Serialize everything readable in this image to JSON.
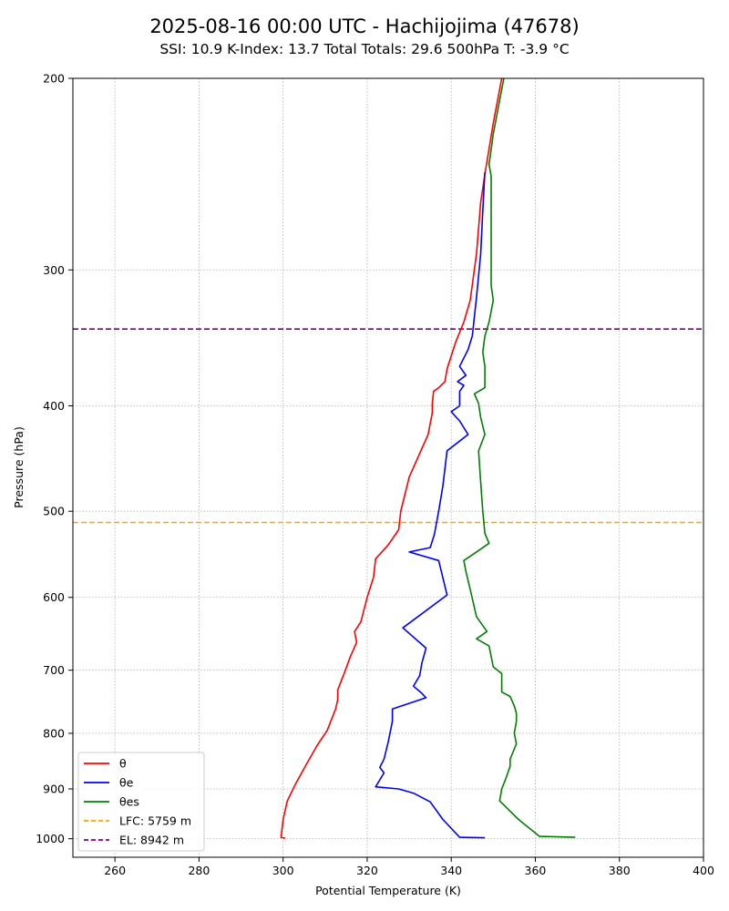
{
  "chart_data": {
    "type": "line",
    "title": "2025-08-16 00:00 UTC - Hachijojima (47678)",
    "subtitle": "SSI: 10.9   K-Index: 13.7   Total Totals: 29.6   500hPa T: -3.9 °C",
    "xlabel": "Potential Temperature (K)",
    "ylabel": "Pressure (hPa)",
    "xlim": [
      250,
      400
    ],
    "ylim": [
      1040,
      200
    ],
    "yscale": "log",
    "xticks": [
      260,
      280,
      300,
      320,
      340,
      360,
      380,
      400
    ],
    "yticks": [
      200,
      300,
      400,
      500,
      600,
      700,
      800,
      900,
      1000
    ],
    "grid": true,
    "legend_position": "lower-left",
    "series": [
      {
        "name": "θ",
        "color": "#ff0000",
        "points": [
          [
            300.5,
            999
          ],
          [
            299.5,
            997
          ],
          [
            300,
            960
          ],
          [
            301,
            923
          ],
          [
            303,
            890
          ],
          [
            305.5,
            855
          ],
          [
            308,
            822
          ],
          [
            310.5,
            795
          ],
          [
            312.5,
            760
          ],
          [
            313,
            745
          ],
          [
            313,
            730
          ],
          [
            314.5,
            705
          ],
          [
            316,
            680
          ],
          [
            317.5,
            660
          ],
          [
            317,
            645
          ],
          [
            318.5,
            632
          ],
          [
            320,
            600
          ],
          [
            321.5,
            575
          ],
          [
            322,
            553
          ],
          [
            325,
            537
          ],
          [
            327.5,
            520
          ],
          [
            328,
            500
          ],
          [
            330,
            465
          ],
          [
            333,
            438
          ],
          [
            334.5,
            425
          ],
          [
            335.5,
            406
          ],
          [
            335.5,
            398
          ],
          [
            335.8,
            388
          ],
          [
            337,
            385
          ],
          [
            338.5,
            380
          ],
          [
            339,
            370
          ],
          [
            340,
            360
          ],
          [
            341,
            350
          ],
          [
            343,
            335
          ],
          [
            344.5,
            320
          ],
          [
            346,
            290
          ],
          [
            347,
            260
          ],
          [
            348,
            245
          ],
          [
            350,
            220
          ],
          [
            352,
            200
          ]
        ]
      },
      {
        "name": "θe",
        "color": "#0000ff",
        "points": [
          [
            348,
            998
          ],
          [
            342,
            997
          ],
          [
            338,
            960
          ],
          [
            335,
            925
          ],
          [
            331,
            908
          ],
          [
            327.5,
            900
          ],
          [
            322,
            896
          ],
          [
            324,
            870
          ],
          [
            323,
            860
          ],
          [
            324,
            845
          ],
          [
            325,
            815
          ],
          [
            326,
            780
          ],
          [
            326,
            760
          ],
          [
            334,
            742
          ],
          [
            333,
            735
          ],
          [
            331,
            724
          ],
          [
            332.5,
            708
          ],
          [
            333,
            690
          ],
          [
            334,
            668
          ],
          [
            328.5,
            640
          ],
          [
            339,
            597
          ],
          [
            337,
            555
          ],
          [
            330,
            545
          ],
          [
            335,
            540
          ],
          [
            336,
            525
          ],
          [
            337,
            500
          ],
          [
            338,
            474
          ],
          [
            339,
            440
          ],
          [
            344,
            425
          ],
          [
            342,
            413
          ],
          [
            340,
            405
          ],
          [
            342,
            400
          ],
          [
            342,
            388
          ],
          [
            343,
            383
          ],
          [
            341.5,
            380
          ],
          [
            343.5,
            375
          ],
          [
            342,
            368
          ],
          [
            344,
            355
          ],
          [
            345,
            345
          ],
          [
            346,
            318
          ],
          [
            347,
            290
          ],
          [
            347.5,
            265
          ],
          [
            348,
            244
          ]
        ]
      },
      {
        "name": "θes",
        "color": "#008000",
        "points": [
          [
            369.5,
            997
          ],
          [
            361,
            995
          ],
          [
            356,
            960
          ],
          [
            351.5,
            923
          ],
          [
            352,
            900
          ],
          [
            353,
            880
          ],
          [
            354,
            858
          ],
          [
            354,
            845
          ],
          [
            355.5,
            818
          ],
          [
            355,
            800
          ],
          [
            355.5,
            780
          ],
          [
            355.5,
            767
          ],
          [
            355,
            755
          ],
          [
            354,
            740
          ],
          [
            352,
            733
          ],
          [
            352,
            728
          ],
          [
            352,
            715
          ],
          [
            352,
            705
          ],
          [
            350,
            695
          ],
          [
            349,
            665
          ],
          [
            346,
            655
          ],
          [
            348.5,
            645
          ],
          [
            346,
            625
          ],
          [
            344.5,
            590
          ],
          [
            343.5,
            568
          ],
          [
            343,
            555
          ],
          [
            346,
            545
          ],
          [
            349,
            535
          ],
          [
            348,
            524
          ],
          [
            347.5,
            500
          ],
          [
            347,
            470
          ],
          [
            346.5,
            440
          ],
          [
            348,
            425
          ],
          [
            347,
            410
          ],
          [
            346.5,
            398
          ],
          [
            345.5,
            390
          ],
          [
            348,
            385
          ],
          [
            348,
            375
          ],
          [
            348,
            368
          ],
          [
            347.5,
            357
          ],
          [
            348,
            345
          ],
          [
            349,
            335
          ],
          [
            350,
            320
          ],
          [
            349.5,
            310
          ],
          [
            349.5,
            300
          ],
          [
            349.5,
            280
          ],
          [
            349.5,
            262
          ],
          [
            349.5,
            246
          ],
          [
            349,
            240
          ],
          [
            350,
            225
          ],
          [
            352.5,
            200
          ]
        ]
      }
    ],
    "reference_lines": [
      {
        "name": "LFC: 5759 m",
        "pressure": 512,
        "color": "#ffa500"
      },
      {
        "name": "EL: 8942 m",
        "pressure": 340,
        "color": "#800080"
      }
    ]
  }
}
